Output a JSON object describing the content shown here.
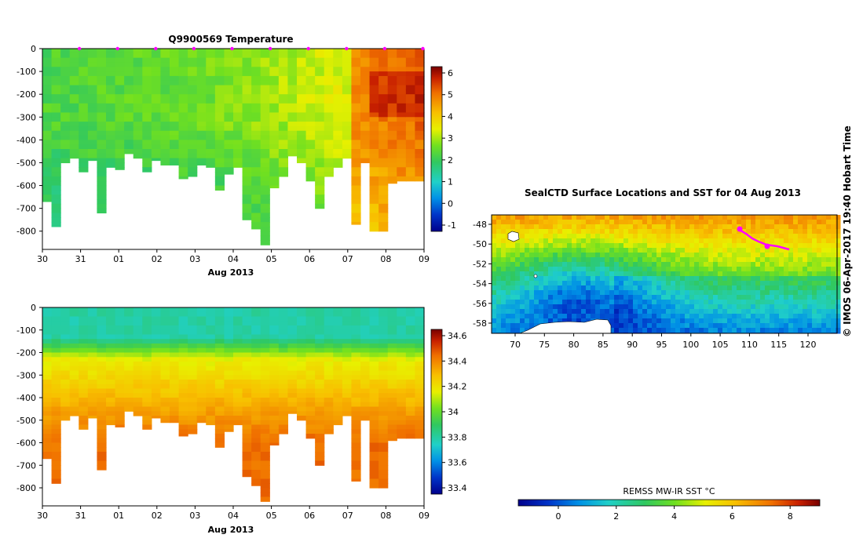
{
  "colors": {
    "scale": [
      "#00008c",
      "#0034c8",
      "#0090e6",
      "#20d0c8",
      "#30c860",
      "#70e020",
      "#e8f000",
      "#f8c000",
      "#f07000",
      "#c82000",
      "#780000"
    ],
    "marker": "#ff00ff",
    "land": "#ffffff"
  },
  "time_axis": {
    "tick_labels": [
      "30",
      "31",
      "01",
      "02",
      "03",
      "04",
      "05",
      "06",
      "07",
      "08",
      "09"
    ],
    "xlabel": "Aug 2013"
  },
  "depth_axis": {
    "tick_labels": [
      "0",
      "-100",
      "-200",
      "-300",
      "-400",
      "-500",
      "-600",
      "-700",
      "-800"
    ]
  },
  "chart_data": [
    {
      "type": "heatmap",
      "title": "Q9900569  Temperature",
      "xlabel": "Aug 2013",
      "ylabel": "",
      "x_range_days": [
        0,
        10
      ],
      "ylim": [
        -880,
        0
      ],
      "colorbar": {
        "labels": [
          "6",
          "5",
          "4",
          "3",
          "2",
          "1",
          "0",
          "-1"
        ],
        "range": [
          -1.3,
          6.9
        ]
      },
      "profile_max_depth_m": [
        670,
        780,
        500,
        480,
        540,
        490,
        720,
        520,
        530,
        460,
        480,
        540,
        490,
        510,
        510,
        570,
        560,
        510,
        520,
        620,
        550,
        520,
        750,
        790,
        860,
        610,
        560,
        470,
        500,
        580,
        700,
        560,
        520,
        480,
        770,
        500,
        800,
        800,
        590,
        580,
        580,
        580
      ]
    },
    {
      "type": "heatmap",
      "title": "",
      "xlabel": "Aug 2013",
      "ylabel": "",
      "x_range_days": [
        0,
        10
      ],
      "ylim": [
        -880,
        0
      ],
      "colorbar": {
        "labels": [
          "34.6",
          "34.4",
          "34.2",
          "34",
          "33.8",
          "33.6",
          "33.4"
        ],
        "range": [
          33.3,
          34.7
        ]
      },
      "profile_max_depth_m": [
        670,
        780,
        500,
        480,
        540,
        490,
        720,
        520,
        530,
        460,
        480,
        540,
        490,
        510,
        510,
        570,
        560,
        510,
        520,
        620,
        550,
        520,
        750,
        790,
        860,
        610,
        560,
        470,
        500,
        580,
        700,
        560,
        520,
        480,
        770,
        500,
        800,
        800,
        590,
        580,
        580,
        580
      ]
    },
    {
      "type": "heatmap",
      "title": "SealCTD Surface Locations and SST for 04 Aug 2013",
      "xlabel": "",
      "ylabel": "",
      "xlim": [
        66,
        124
      ],
      "ylim": [
        -59,
        -47
      ],
      "x_tick_labels": [
        "70",
        "75",
        "80",
        "85",
        "90",
        "95",
        "100",
        "105",
        "110",
        "115",
        "120"
      ],
      "y_tick_labels": [
        "-48",
        "-50",
        "-52",
        "-54",
        "-56",
        "-58"
      ],
      "colorbar": {
        "title": "REMSS MW-IR SST °C",
        "labels": [
          "0",
          "2",
          "4",
          "6",
          "8"
        ],
        "range": [
          -1.4,
          9.0
        ]
      }
    }
  ],
  "footer": {
    "credit": "© IMOS 06-Apr-2017 19:40 Hobart Time"
  }
}
